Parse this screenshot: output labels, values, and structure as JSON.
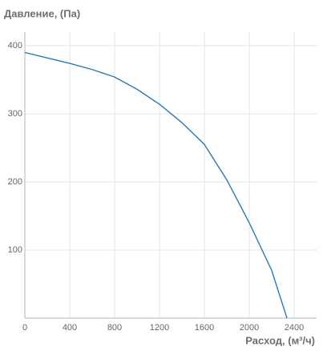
{
  "chart_data": {
    "type": "line",
    "y_axis_title": "Давление, (Па)",
    "x_axis_title": "Расход, (м³/ч)",
    "x": [
      0,
      200,
      400,
      600,
      800,
      1000,
      1200,
      1400,
      1600,
      1800,
      2000,
      2200,
      2336
    ],
    "series": [
      {
        "color": "#2b79b0",
        "values": [
          390,
          382,
          374,
          365,
          354,
          336,
          314,
          287,
          255,
          203,
          140,
          70,
          0
        ]
      }
    ],
    "xlim": [
      0,
      2600
    ],
    "xticks": [
      0,
      400,
      800,
      1200,
      1600,
      2000,
      2400
    ],
    "ylim": [
      0,
      420
    ],
    "yticks": [
      100,
      200,
      300,
      400
    ],
    "grid": true
  }
}
